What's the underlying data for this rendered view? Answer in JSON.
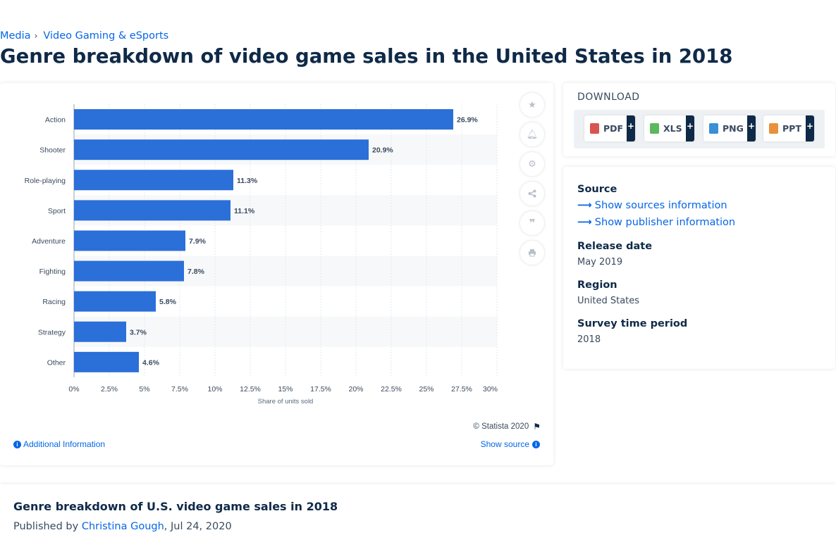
{
  "breadcrumb": {
    "items": [
      "Media",
      "Video Gaming & eSports"
    ],
    "separator": "›"
  },
  "page_title": "Genre breakdown of video game sales in the United States in 2018",
  "chart_data": {
    "type": "bar",
    "orientation": "horizontal",
    "categories": [
      "Action",
      "Shooter",
      "Role-playing",
      "Sport",
      "Adventure",
      "Fighting",
      "Racing",
      "Strategy",
      "Other"
    ],
    "values": [
      26.9,
      20.9,
      11.3,
      11.1,
      7.9,
      7.8,
      5.8,
      3.7,
      4.6
    ],
    "value_labels": [
      "26.9%",
      "20.9%",
      "11.3%",
      "11.1%",
      "7.9%",
      "7.8%",
      "5.8%",
      "3.7%",
      "4.6%"
    ],
    "xlabel": "Share of units sold",
    "xlim": [
      0,
      30
    ],
    "xticks": [
      0,
      2.5,
      5,
      7.5,
      10,
      12.5,
      15,
      17.5,
      20,
      22.5,
      25,
      27.5,
      30
    ],
    "xtick_labels": [
      "0%",
      "2.5%",
      "5%",
      "7.5%",
      "10%",
      "12.5%",
      "15%",
      "17.5%",
      "20%",
      "22.5%",
      "25%",
      "27.5%",
      "30%"
    ],
    "bar_color": "#2b6fd9",
    "grid": true,
    "legend": "none"
  },
  "chart_footer": {
    "copyright": "© Statista 2020",
    "additional_info": "Additional Information",
    "show_source": "Show source"
  },
  "tools": [
    "star-icon",
    "bell-icon",
    "gear-icon",
    "share-icon",
    "quote-icon",
    "print-icon"
  ],
  "download": {
    "title": "DOWNLOAD",
    "buttons": [
      {
        "label": "PDF",
        "plus": "+",
        "icon": "pdf-file-icon",
        "color": "#d9534f"
      },
      {
        "label": "XLS",
        "plus": "+",
        "icon": "xls-file-icon",
        "color": "#5cb85c"
      },
      {
        "label": "PNG",
        "plus": "+",
        "icon": "png-file-icon",
        "color": "#3a8fd6"
      },
      {
        "label": "PPT",
        "plus": "+",
        "icon": "ppt-file-icon",
        "color": "#e8903a"
      }
    ]
  },
  "info": {
    "source_label": "Source",
    "show_sources": "Show sources information",
    "show_publisher": "Show publisher information",
    "release_label": "Release date",
    "release_value": "May 2019",
    "region_label": "Region",
    "region_value": "United States",
    "survey_label": "Survey time period",
    "survey_value": "2018"
  },
  "bottom": {
    "title": "Genre breakdown of U.S. video game sales in 2018",
    "published_prefix": "Published by",
    "author": "Christina Gough",
    "date": ", Jul 24, 2020"
  },
  "colors": {
    "accent": "#0666e5",
    "dark": "#0f2a48",
    "bar": "#2b6fd9"
  }
}
